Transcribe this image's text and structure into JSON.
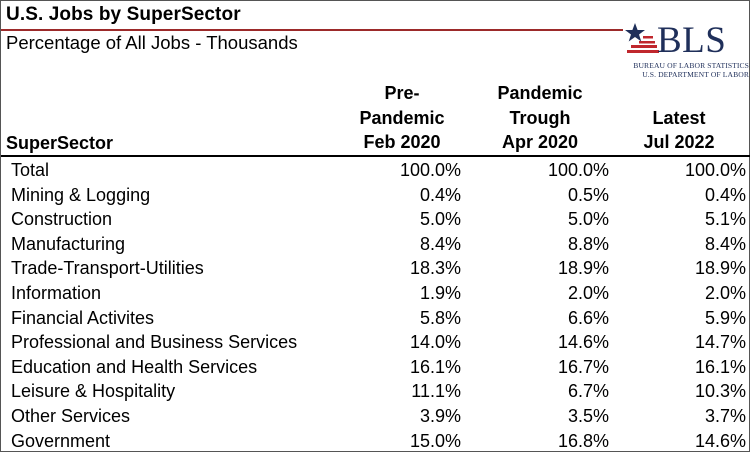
{
  "title": "U.S. Jobs by SuperSector",
  "subtitle": "Percentage of All Jobs - Thousands",
  "logo": {
    "text": "BLS",
    "line1": "BUREAU OF LABOR STATISTICS",
    "line2": "U.S. DEPARTMENT OF LABOR",
    "colors": {
      "navy": "#1f2f5a",
      "red": "#c0272d"
    }
  },
  "columns": {
    "sector": "SuperSector",
    "pre": [
      "Pre-",
      "Pandemic",
      "Feb 2020"
    ],
    "trough": [
      "Pandemic",
      "Trough",
      "Apr 2020"
    ],
    "latest": [
      "Latest",
      "Jul 2022"
    ]
  },
  "rows": [
    {
      "name": "Total",
      "pre": "100.0%",
      "trough": "100.0%",
      "latest": "100.0%"
    },
    {
      "name": "Mining & Logging",
      "pre": "0.4%",
      "trough": "0.5%",
      "latest": "0.4%"
    },
    {
      "name": "Construction",
      "pre": "5.0%",
      "trough": "5.0%",
      "latest": "5.1%"
    },
    {
      "name": "Manufacturing",
      "pre": "8.4%",
      "trough": "8.8%",
      "latest": "8.4%"
    },
    {
      "name": "Trade-Transport-Utilities",
      "pre": "18.3%",
      "trough": "18.9%",
      "latest": "18.9%"
    },
    {
      "name": "Information",
      "pre": "1.9%",
      "trough": "2.0%",
      "latest": "2.0%"
    },
    {
      "name": "Financial Activites",
      "pre": "5.8%",
      "trough": "6.6%",
      "latest": "5.9%"
    },
    {
      "name": "Professional and Business Services",
      "pre": "14.0%",
      "trough": "14.6%",
      "latest": "14.7%"
    },
    {
      "name": "Education and Health Services",
      "pre": "16.1%",
      "trough": "16.7%",
      "latest": "16.1%"
    },
    {
      "name": "Leisure & Hospitality",
      "pre": "11.1%",
      "trough": "6.7%",
      "latest": "10.3%"
    },
    {
      "name": "Other Services",
      "pre": "3.9%",
      "trough": "3.5%",
      "latest": "3.7%"
    },
    {
      "name": "Government",
      "pre": "15.0%",
      "trough": "16.8%",
      "latest": "14.6%"
    }
  ]
}
